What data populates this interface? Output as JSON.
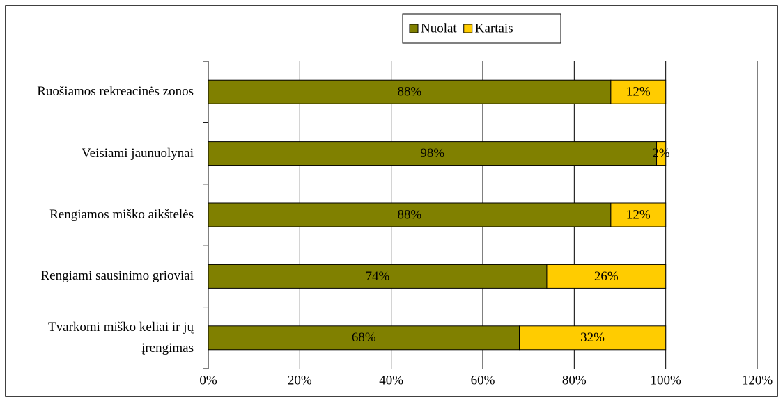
{
  "chart_data": {
    "type": "stacked_barh",
    "categories": [
      "Ruošiamos rekreacinės zonos",
      "Veisiami jaunuolynai",
      "Rengiamos miško aikštelės",
      "Rengiami sausinimo grioviai",
      "Tvarkomi miško keliai ir jų įrengimas"
    ],
    "series": [
      {
        "name": "Nuolat",
        "color": "#808000",
        "values": [
          88,
          98,
          88,
          74,
          68
        ],
        "value_labels": [
          "88%",
          "98%",
          "88%",
          "74%",
          "68%"
        ]
      },
      {
        "name": "Kartais",
        "color": "#ffcc00",
        "values": [
          12,
          2,
          12,
          26,
          32
        ],
        "value_labels": [
          "12%",
          "2%",
          "12%",
          "26%",
          "32%"
        ]
      }
    ],
    "xlim": [
      0,
      120
    ],
    "xticks": [
      {
        "value": 0,
        "label": "0%"
      },
      {
        "value": 20,
        "label": "20%"
      },
      {
        "value": 40,
        "label": "40%"
      },
      {
        "value": 60,
        "label": "60%"
      },
      {
        "value": 80,
        "label": "80%"
      },
      {
        "value": 100,
        "label": "100%"
      },
      {
        "value": 120,
        "label": "120%"
      }
    ],
    "grid": true,
    "legend": "top"
  }
}
